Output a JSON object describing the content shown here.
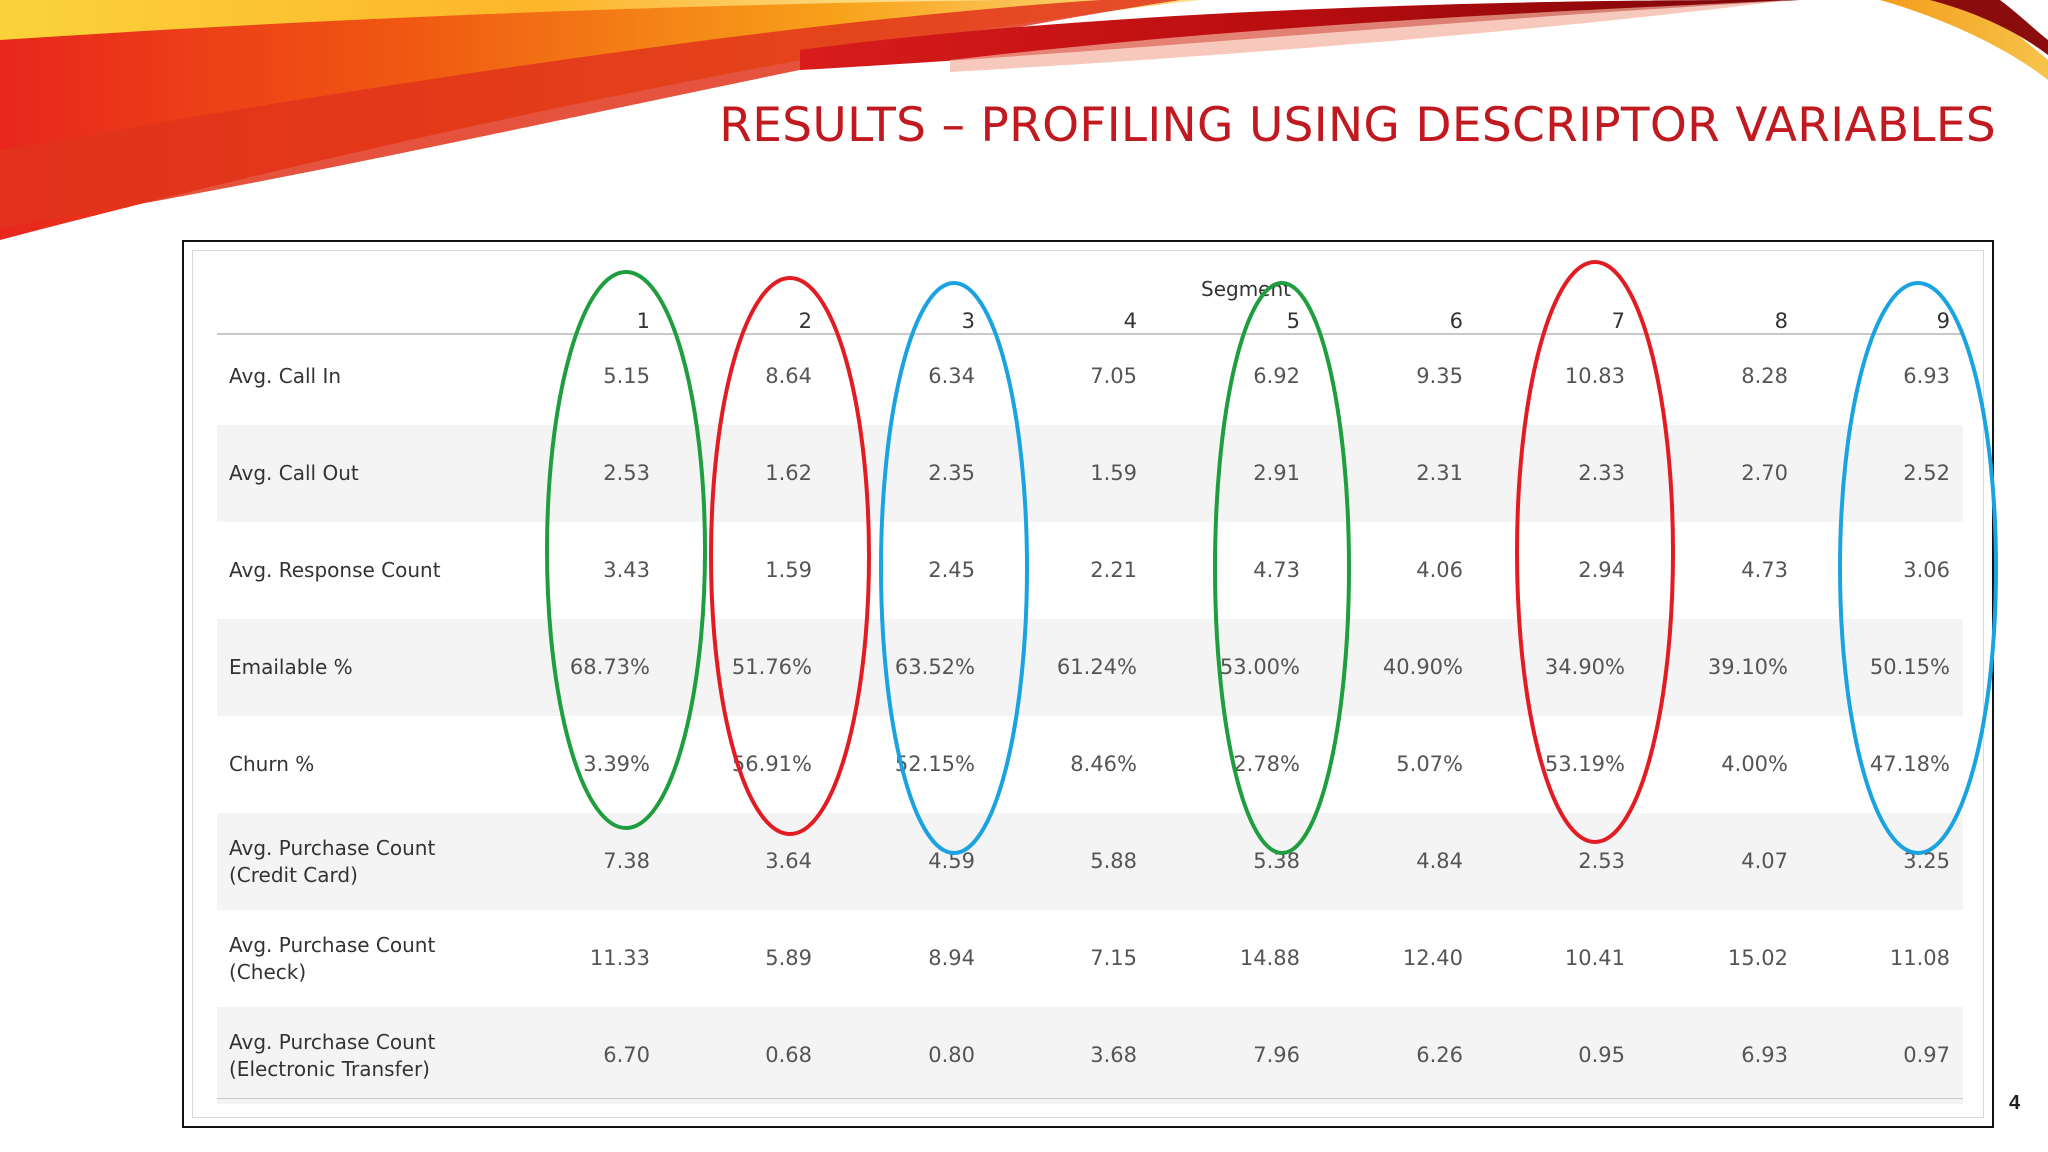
{
  "slide": {
    "title": "RESULTS – PROFILING USING DESCRIPTOR VARIABLES",
    "page_number": "4"
  },
  "table": {
    "group_header": "Segment",
    "columns": [
      "1",
      "2",
      "3",
      "4",
      "5",
      "6",
      "7",
      "8",
      "9"
    ],
    "rows": [
      {
        "label": [
          "Avg. Call In"
        ],
        "values": [
          "5.15",
          "8.64",
          "6.34",
          "7.05",
          "6.92",
          "9.35",
          "10.83",
          "8.28",
          "6.93"
        ]
      },
      {
        "label": [
          "Avg. Call Out"
        ],
        "values": [
          "2.53",
          "1.62",
          "2.35",
          "1.59",
          "2.91",
          "2.31",
          "2.33",
          "2.70",
          "2.52"
        ]
      },
      {
        "label": [
          "Avg. Response Count"
        ],
        "values": [
          "3.43",
          "1.59",
          "2.45",
          "2.21",
          "4.73",
          "4.06",
          "2.94",
          "4.73",
          "3.06"
        ]
      },
      {
        "label": [
          "Emailable %"
        ],
        "values": [
          "68.73%",
          "51.76%",
          "63.52%",
          "61.24%",
          "53.00%",
          "40.90%",
          "34.90%",
          "39.10%",
          "50.15%"
        ]
      },
      {
        "label": [
          "Churn %"
        ],
        "values": [
          "3.39%",
          "56.91%",
          "52.15%",
          "8.46%",
          "2.78%",
          "5.07%",
          "53.19%",
          "4.00%",
          "47.18%"
        ]
      },
      {
        "label": [
          "Avg. Purchase Count",
          "(Credit Card)"
        ],
        "values": [
          "7.38",
          "3.64",
          "4.59",
          "5.88",
          "5.38",
          "4.84",
          "2.53",
          "4.07",
          "3.25"
        ]
      },
      {
        "label": [
          "Avg. Purchase Count",
          "(Check)"
        ],
        "values": [
          "11.33",
          "5.89",
          "8.94",
          "7.15",
          "14.88",
          "12.40",
          "10.41",
          "15.02",
          "11.08"
        ]
      },
      {
        "label": [
          "Avg. Purchase Count",
          "(Electronic Transfer)"
        ],
        "values": [
          "6.70",
          "0.68",
          "0.80",
          "3.68",
          "7.96",
          "6.26",
          "0.95",
          "6.93",
          "0.97"
        ]
      }
    ]
  },
  "highlights": [
    {
      "segment": "1",
      "color": "#1e9e3e"
    },
    {
      "segment": "2",
      "color": "#e31b23"
    },
    {
      "segment": "3",
      "color": "#1aa3e0"
    },
    {
      "segment": "5",
      "color": "#1e9e3e"
    },
    {
      "segment": "7",
      "color": "#e31b23"
    },
    {
      "segment": "9",
      "color": "#1aa3e0"
    }
  ]
}
